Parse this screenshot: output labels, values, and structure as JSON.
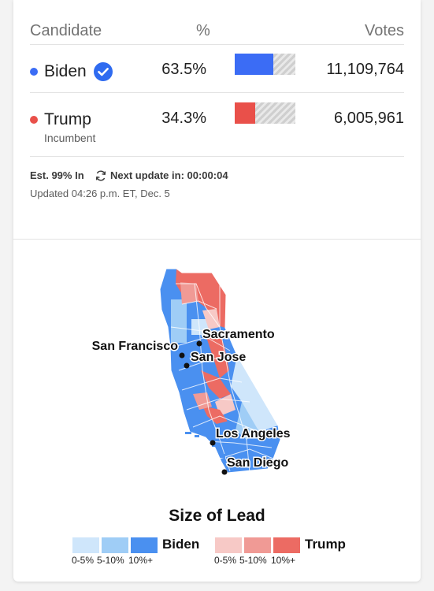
{
  "header": {
    "candidate": "Candidate",
    "percent": "%",
    "votes": "Votes"
  },
  "candidates": [
    {
      "name": "Biden",
      "subtitle": "",
      "percent": "63.5%",
      "votes": "11,109,764",
      "share": 0.635,
      "color": "#3b6cf5",
      "winner": true
    },
    {
      "name": "Trump",
      "subtitle": "Incumbent",
      "percent": "34.3%",
      "votes": "6,005,961",
      "share": 0.343,
      "color": "#e9504a",
      "winner": false
    }
  ],
  "status": {
    "reporting": "Est. 99% In",
    "next_update": "Next update in: 00:00:04",
    "updated": "Updated 04:26 p.m. ET, Dec. 5"
  },
  "map": {
    "cities": [
      "San Francisco",
      "Sacramento",
      "San Jose",
      "Los Angeles",
      "San Diego"
    ]
  },
  "legend": {
    "title": "Size of Lead",
    "biden_label": "Biden",
    "trump_label": "Trump",
    "ticks": [
      "0-5%",
      "5-10%",
      "10%+"
    ],
    "biden_colors": [
      "#cfe6fb",
      "#9fcdf6",
      "#4a90f0"
    ],
    "trump_colors": [
      "#f7c9c6",
      "#f09a95",
      "#ec6b63"
    ]
  },
  "icons": {
    "winner": "check-circle-icon",
    "refresh": "refresh-icon"
  }
}
